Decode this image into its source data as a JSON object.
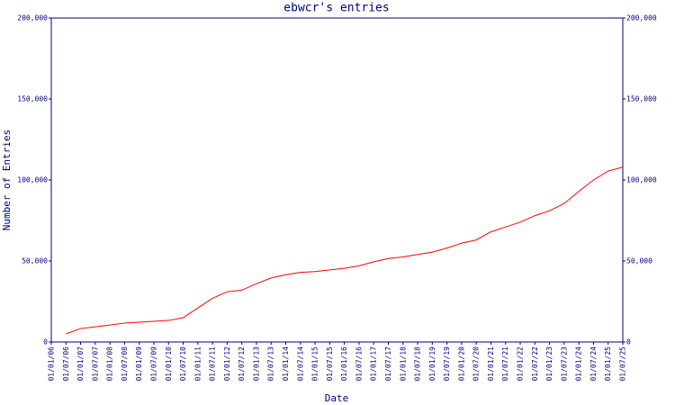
{
  "chart_data": {
    "type": "line",
    "title": "ebwcr's entries",
    "x_label": "Date",
    "y_label": "Number of Entries",
    "x": [
      "01/01/06",
      "01/07/06",
      "01/01/07",
      "01/07/07",
      "01/01/08",
      "01/07/08",
      "01/01/09",
      "01/07/09",
      "01/01/10",
      "01/07/10",
      "01/01/11",
      "01/07/11",
      "01/01/12",
      "01/07/12",
      "01/01/13",
      "01/07/13",
      "01/01/14",
      "01/07/14",
      "01/01/15",
      "01/07/15",
      "01/01/16",
      "01/07/16",
      "01/01/17",
      "01/07/17",
      "01/01/18",
      "01/07/18",
      "01/01/19",
      "01/07/19",
      "01/01/20",
      "01/07/20",
      "01/01/21",
      "01/07/21",
      "01/01/22",
      "01/07/22",
      "01/01/23",
      "01/07/23",
      "01/01/24",
      "01/07/24",
      "01/01/25",
      "01/07/25"
    ],
    "series": [
      {
        "name": "Entries",
        "color": "#ff0000",
        "values": [
          null,
          5000,
          8300,
          9400,
          10500,
          11700,
          12200,
          12800,
          13300,
          15000,
          21000,
          27000,
          31000,
          32000,
          36000,
          39500,
          41500,
          43000,
          43500,
          44500,
          45500,
          47000,
          49500,
          51500,
          52500,
          54000,
          55500,
          58000,
          61000,
          63000,
          68000,
          71000,
          74000,
          78000,
          81000,
          85500,
          93000,
          100000,
          105500,
          108000
        ]
      }
    ],
    "ylim": [
      0,
      200000
    ],
    "yticks": [
      0,
      {
        "value": 50000,
        "label": "50,000"
      },
      {
        "value": 100000,
        "label": "100,000"
      },
      {
        "value": 150000,
        "label": "150,000"
      },
      {
        "value": 200000,
        "label": "200,000"
      }
    ]
  }
}
